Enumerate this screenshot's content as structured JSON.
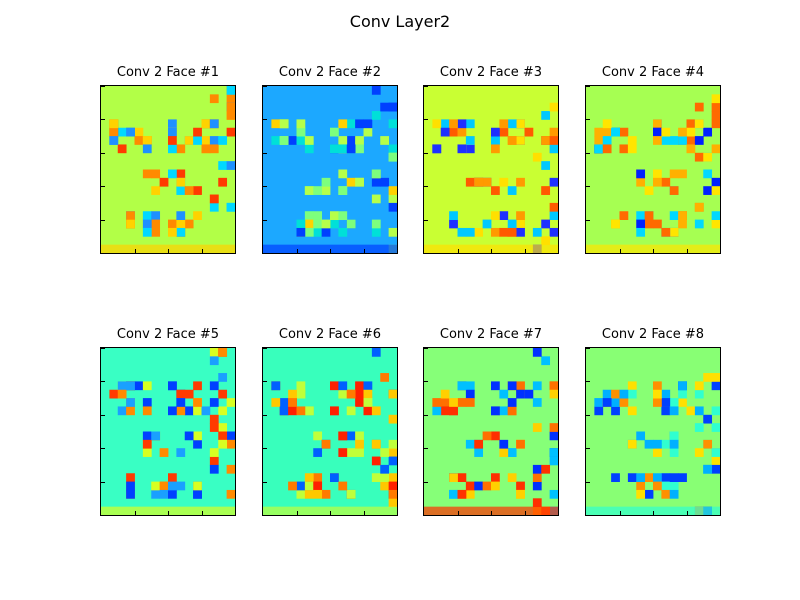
{
  "figure": {
    "suptitle": "Conv Layer2"
  },
  "panels": [
    {
      "title": "Conv 2 Face #1",
      "base_color": "#b2ff47",
      "palette": [
        "#ff8a00",
        "#ff3a00",
        "#1e90ff",
        "#00d8ff",
        "#ffd200"
      ]
    },
    {
      "title": "Conv 2 Face #2",
      "base_color": "#1ca8ff",
      "palette": [
        "#b6ff4a",
        "#7dff7d",
        "#00e0d8",
        "#ffd200",
        "#0040ff"
      ]
    },
    {
      "title": "Conv 2 Face #3",
      "base_color": "#c9ff33",
      "palette": [
        "#ff5a00",
        "#ff9a00",
        "#1e30ff",
        "#00c8ff",
        "#ffe000"
      ]
    },
    {
      "title": "Conv 2 Face #4",
      "base_color": "#a6ff52",
      "palette": [
        "#ff6a00",
        "#ffb000",
        "#0020ff",
        "#00d8ff",
        "#ffe500"
      ]
    },
    {
      "title": "Conv 2 Face #5",
      "base_color": "#39ffc4",
      "palette": [
        "#ff8a00",
        "#ff3a00",
        "#0040ff",
        "#1aa0ff",
        "#d8ff22"
      ]
    },
    {
      "title": "Conv 2 Face #6",
      "base_color": "#38ffbc",
      "palette": [
        "#ff7a00",
        "#ffc800",
        "#ff2000",
        "#0060ff",
        "#c0ff3a"
      ]
    },
    {
      "title": "Conv 2 Face #7",
      "base_color": "#86ff78",
      "palette": [
        "#ff7000",
        "#ffd000",
        "#0030ff",
        "#00c0ff",
        "#ff3000"
      ]
    },
    {
      "title": "Conv 2 Face #8",
      "base_color": "#88ff74",
      "palette": [
        "#00b0ff",
        "#0040ff",
        "#ff9000",
        "#ffe000",
        "#30ffd0"
      ]
    }
  ]
}
